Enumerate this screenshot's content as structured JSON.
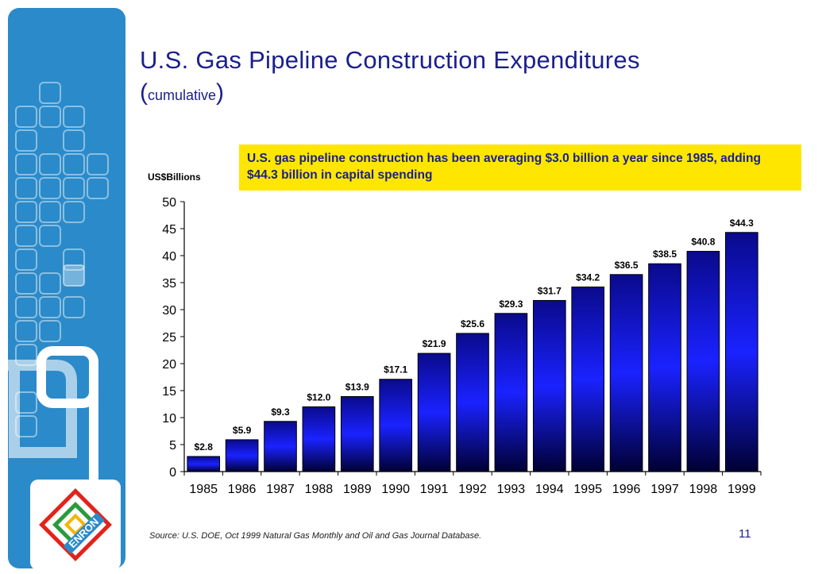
{
  "slide": {
    "title": "U.S. Gas Pipeline Construction Expenditures",
    "subtitle_open": "(",
    "subtitle_text": "cumulative",
    "subtitle_close": ")",
    "callout": "U.S. gas pipeline construction has been averaging $3.0 billion a year since 1985, adding $44.3 billion in capital spending",
    "source": "Source: U.S. DOE, Oct 1999 Natural Gas Monthly and Oil and Gas Journal Database.",
    "page_number": "11",
    "logo_text": "ENRON"
  },
  "colors": {
    "sidebar": "#2b8ac9",
    "title": "#1a1f8c",
    "callout_bg": "#ffe600",
    "bar_top": "#0a0a8c",
    "bar_mid": "#1a22ff",
    "bar_bottom": "#000033"
  },
  "chart_data": {
    "type": "bar",
    "title": "",
    "ylabel": "US$Billions",
    "xlabel": "",
    "categories": [
      "1985",
      "1986",
      "1987",
      "1988",
      "1989",
      "1990",
      "1991",
      "1992",
      "1993",
      "1994",
      "1995",
      "1996",
      "1997",
      "1998",
      "1999"
    ],
    "values": [
      2.8,
      5.9,
      9.3,
      12.0,
      13.9,
      17.1,
      21.9,
      25.6,
      29.3,
      31.7,
      34.2,
      36.5,
      38.5,
      40.8,
      44.3
    ],
    "value_labels": [
      "$2.8",
      "$5.9",
      "$9.3",
      "$12.0",
      "$13.9",
      "$17.1",
      "$21.9",
      "$25.6",
      "$29.3",
      "$31.7",
      "$34.2",
      "$36.5",
      "$38.5",
      "$40.8",
      "$44.3"
    ],
    "ylim": [
      0,
      50
    ],
    "yticks": [
      0,
      5,
      10,
      15,
      20,
      25,
      30,
      35,
      40,
      45,
      50
    ],
    "grid": false,
    "legend": "none"
  }
}
